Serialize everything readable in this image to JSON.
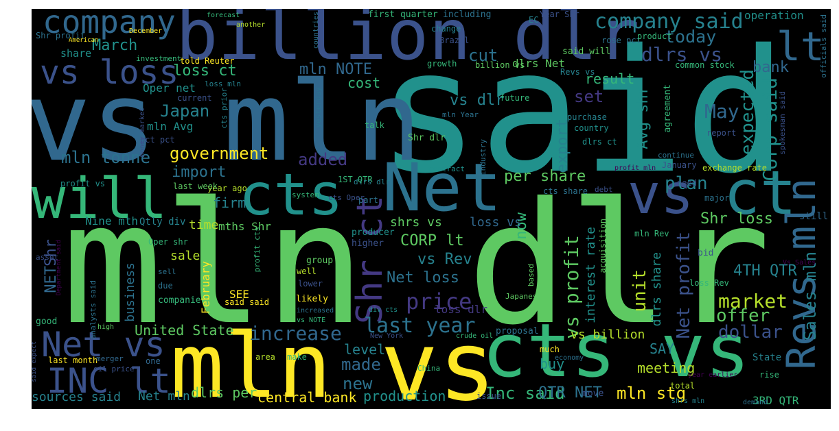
{
  "words": [
    {
      "text": "mln dlr",
      "color": "#5ec962"
    },
    {
      "text": "said",
      "color": "#21918c"
    },
    {
      "text": "vs mln",
      "color": "#31688e"
    },
    {
      "text": "billion dlr",
      "color": "#3b528b"
    },
    {
      "text": "mln",
      "color": "#fde725"
    },
    {
      "text": "cts vs",
      "color": "#35b779"
    },
    {
      "text": "vs",
      "color": "#fde725"
    },
    {
      "text": "Net",
      "color": "#2c728e"
    },
    {
      "text": "cts",
      "color": "#21918c"
    },
    {
      "text": "will",
      "color": "#35b779"
    },
    {
      "text": "vs",
      "color": "#3b528b"
    },
    {
      "text": "ct",
      "color": "#26828e"
    },
    {
      "text": "company",
      "color": "#31688e"
    },
    {
      "text": "lt",
      "color": "#31688e"
    },
    {
      "text": "Revs mln",
      "color": "#31688e"
    },
    {
      "text": "Shr ct",
      "color": "#443983"
    },
    {
      "text": "Net vs",
      "color": "#3b528b"
    },
    {
      "text": "INC lt",
      "color": "#3b528b"
    },
    {
      "text": "vs loss",
      "color": "#3b528b"
    },
    {
      "text": "company said",
      "color": "#26828e"
    },
    {
      "text": "last year",
      "color": "#2c728e"
    },
    {
      "text": "Corp said",
      "color": "#21918c"
    },
    {
      "text": "market",
      "color": "#b5de2b"
    },
    {
      "text": "price",
      "color": "#443983"
    },
    {
      "text": "increase",
      "color": "#31688e"
    },
    {
      "text": "dlrs vs",
      "color": "#3b528b"
    },
    {
      "text": "today",
      "color": "#2c728e"
    },
    {
      "text": "May",
      "color": "#31688e"
    },
    {
      "text": "vs profit",
      "color": "#5ec962"
    },
    {
      "text": "Net profit",
      "color": "#3b528b"
    },
    {
      "text": "Sales mln",
      "color": "#26828e"
    },
    {
      "text": "mln stg",
      "color": "#fde725"
    },
    {
      "text": "Inc said",
      "color": "#35b779"
    },
    {
      "text": "made",
      "color": "#31688e"
    },
    {
      "text": "new",
      "color": "#2c728e"
    },
    {
      "text": "government",
      "color": "#fde725"
    },
    {
      "text": "added",
      "color": "#443983"
    },
    {
      "text": "mln tonne",
      "color": "#2c728e"
    },
    {
      "text": "Japan",
      "color": "#26828e"
    },
    {
      "text": "loss ct",
      "color": "#35b779"
    },
    {
      "text": "mln NOTE",
      "color": "#31688e"
    },
    {
      "text": "March",
      "color": "#21918c"
    },
    {
      "text": "per share",
      "color": "#5ec962"
    },
    {
      "text": "plan",
      "color": "#26828e"
    },
    {
      "text": "CORP lt",
      "color": "#5ec962"
    },
    {
      "text": "vs Rev",
      "color": "#26828e"
    },
    {
      "text": "Net loss",
      "color": "#2c728e"
    },
    {
      "text": "offer",
      "color": "#5ec962"
    },
    {
      "text": "dollar",
      "color": "#3b528b"
    },
    {
      "text": "4TH QTR",
      "color": "#26828e"
    },
    {
      "text": "Shr loss",
      "color": "#5ec962"
    },
    {
      "text": "expected",
      "color": "#21918c"
    },
    {
      "text": "bank",
      "color": "#31688e"
    },
    {
      "text": "export",
      "color": "#26828e"
    },
    {
      "text": "set",
      "color": "#443983"
    },
    {
      "text": "vs dlr",
      "color": "#26828e"
    },
    {
      "text": "cut",
      "color": "#2c728e"
    },
    {
      "text": "cost",
      "color": "#35b779"
    },
    {
      "text": "result",
      "color": "#35b779"
    },
    {
      "text": "Avg shr",
      "color": "#21918c"
    },
    {
      "text": "unit",
      "color": "#b5de2b"
    },
    {
      "text": "dlrs share",
      "color": "#21918c"
    },
    {
      "text": "interest rate",
      "color": "#21918c"
    },
    {
      "text": "now",
      "color": "#35b779"
    },
    {
      "text": "import",
      "color": "#2c728e"
    },
    {
      "text": "firm",
      "color": "#26828e"
    },
    {
      "text": "central bank",
      "color": "#fde725"
    },
    {
      "text": "production",
      "color": "#21918c"
    },
    {
      "text": "dlrs per",
      "color": "#5ec962"
    },
    {
      "text": "Net mln",
      "color": "#26828e"
    },
    {
      "text": "sources said",
      "color": "#26828e"
    },
    {
      "text": "United State",
      "color": "#5ec962"
    },
    {
      "text": "QTR NET",
      "color": "#2c728e"
    },
    {
      "text": "3RD QTR",
      "color": "#35b779"
    },
    {
      "text": "meeting",
      "color": "#b5de2b"
    },
    {
      "text": "SAY",
      "color": "#26828e"
    },
    {
      "text": "level",
      "color": "#26828e"
    },
    {
      "text": "buy",
      "color": "#21918c"
    },
    {
      "text": "vs billion",
      "color": "#b5de2b"
    },
    {
      "text": "loss dlr",
      "color": "#443983"
    },
    {
      "text": "shrs vs",
      "color": "#5ec962"
    },
    {
      "text": "loss vs",
      "color": "#31688e"
    },
    {
      "text": "Shr",
      "color": "#3b528b"
    },
    {
      "text": "NET",
      "color": "#31688e"
    },
    {
      "text": "sale",
      "color": "#b5de2b"
    },
    {
      "text": "business",
      "color": "#2c728e"
    },
    {
      "text": "February",
      "color": "#fde725"
    },
    {
      "text": "SEE",
      "color": "#fde725"
    },
    {
      "text": "Nine mth",
      "color": "#21918c"
    },
    {
      "text": "Qtly div",
      "color": "#26828e"
    },
    {
      "text": "time",
      "color": "#b5de2b"
    },
    {
      "text": "mths Shr",
      "color": "#5ec962"
    },
    {
      "text": "mln Avg",
      "color": "#21918c"
    },
    {
      "text": "Oper net",
      "color": "#21918c"
    },
    {
      "text": "share",
      "color": "#21918c"
    },
    {
      "text": "operation",
      "color": "#21918c"
    },
    {
      "text": "first quarter",
      "color": "#35b779"
    },
    {
      "text": "including",
      "color": "#2c728e"
    },
    {
      "text": "Shr profit",
      "color": "#2c728e"
    },
    {
      "text": "told Reuter",
      "color": "#fde725"
    },
    {
      "text": "investment",
      "color": "#35b779"
    },
    {
      "text": "rose pct",
      "color": "#2c728e"
    },
    {
      "text": "said will",
      "color": "#5ec962"
    },
    {
      "text": "product",
      "color": "#35b779"
    },
    {
      "text": "Revs vs",
      "color": "#26828e"
    },
    {
      "text": "common stock",
      "color": "#35b779"
    },
    {
      "text": "Year Shr",
      "color": "#3b528b"
    },
    {
      "text": "EC",
      "color": "#26828e"
    },
    {
      "text": "change",
      "color": "#26828e"
    },
    {
      "text": "Brazil",
      "color": "#3b528b"
    },
    {
      "text": "growth",
      "color": "#35b779"
    },
    {
      "text": "billion vs",
      "color": "#5ec962"
    },
    {
      "text": "dlrs Net",
      "color": "#5ec962"
    },
    {
      "text": "agreement",
      "color": "#35b779"
    },
    {
      "text": "purchase",
      "color": "#26828e"
    },
    {
      "text": "country",
      "color": "#21918c"
    },
    {
      "text": "future",
      "color": "#35b779"
    },
    {
      "text": "dlrs ct",
      "color": "#21918c"
    },
    {
      "text": "report",
      "color": "#3b528b"
    },
    {
      "text": "spokesman said",
      "color": "#3b528b"
    },
    {
      "text": "officials said",
      "color": "#2c728e"
    },
    {
      "text": "continue",
      "color": "#2c728e"
    },
    {
      "text": "January",
      "color": "#3b528b"
    },
    {
      "text": "exchange rate",
      "color": "#b5de2b"
    },
    {
      "text": "need",
      "color": "#3b528b"
    },
    {
      "text": "major",
      "color": "#2c728e"
    },
    {
      "text": "still",
      "color": "#31688e"
    },
    {
      "text": "mln Rev",
      "color": "#35b779"
    },
    {
      "text": "bid",
      "color": "#3b528b"
    },
    {
      "text": "loss Rev",
      "color": "#35b779"
    },
    {
      "text": "State",
      "color": "#26828e"
    },
    {
      "text": "rise",
      "color": "#35b779"
    },
    {
      "text": "total",
      "color": "#b5de2b"
    },
    {
      "text": "proposal",
      "color": "#2c728e"
    },
    {
      "text": "acquisition",
      "color": "#5ec962"
    },
    {
      "text": "based",
      "color": "#5ec962"
    },
    {
      "text": "Japanese",
      "color": "#5ec962"
    },
    {
      "text": "cts share",
      "color": "#2c728e"
    },
    {
      "text": "debt",
      "color": "#3b528b"
    },
    {
      "text": "profit mln",
      "color": "#440154"
    },
    {
      "text": "Vs Sales",
      "color": "#440154"
    },
    {
      "text": "forecast",
      "color": "#35b779"
    },
    {
      "text": "December",
      "color": "#fde725"
    },
    {
      "text": "American",
      "color": "#fde725"
    },
    {
      "text": "another",
      "color": "#b5de2b"
    },
    {
      "text": "countries",
      "color": "#2c728e"
    },
    {
      "text": "current",
      "color": "#3b528b"
    },
    {
      "text": "loss mln",
      "color": "#26828e"
    },
    {
      "text": "cts prior",
      "color": "#26828e"
    },
    {
      "text": "yesterday",
      "color": "#2c728e"
    },
    {
      "text": "mln Year",
      "color": "#2c728e"
    },
    {
      "text": "talk",
      "color": "#35b779"
    },
    {
      "text": "Shr dlr",
      "color": "#5ec962"
    },
    {
      "text": "industry",
      "color": "#2c728e"
    },
    {
      "text": "money market",
      "color": "#3b528b"
    },
    {
      "text": "pct pct",
      "color": "#3b528b"
    },
    {
      "text": "year ago",
      "color": "#b5de2b"
    },
    {
      "text": "1ST QTR",
      "color": "#35b779"
    },
    {
      "text": "contract",
      "color": "#21918c"
    },
    {
      "text": "cts Oper",
      "color": "#3b528b"
    },
    {
      "text": "dlrs dlr",
      "color": "#26828e"
    },
    {
      "text": "profit vs",
      "color": "#21918c"
    },
    {
      "text": "last week",
      "color": "#5ec962"
    },
    {
      "text": "part",
      "color": "#2c728e"
    },
    {
      "text": "system",
      "color": "#35b779"
    },
    {
      "text": "producer",
      "color": "#21918c"
    },
    {
      "text": "higher",
      "color": "#3b528b"
    },
    {
      "text": "profit cts",
      "color": "#35b779"
    },
    {
      "text": "group",
      "color": "#5ec962"
    },
    {
      "text": "well",
      "color": "#b5de2b"
    },
    {
      "text": "lower",
      "color": "#3b528b"
    },
    {
      "text": "likely",
      "color": "#fde725"
    },
    {
      "text": "said said",
      "color": "#fde725"
    },
    {
      "text": "div cts",
      "color": "#21918c"
    },
    {
      "text": "Oper shr",
      "color": "#35b779"
    },
    {
      "text": "asset",
      "color": "#3b528b"
    },
    {
      "text": "Department said",
      "color": "#440154"
    },
    {
      "text": "sell",
      "color": "#2c728e"
    },
    {
      "text": "due",
      "color": "#2c728e"
    },
    {
      "text": "companie",
      "color": "#35b779"
    },
    {
      "text": "increased",
      "color": "#2c728e"
    },
    {
      "text": "vs NOTE",
      "color": "#35b779"
    },
    {
      "text": "analysts said",
      "color": "#2c728e"
    },
    {
      "text": "good",
      "color": "#35b779"
    },
    {
      "text": "high",
      "color": "#5ec962"
    },
    {
      "text": "said expect",
      "color": "#3b528b"
    },
    {
      "text": "last month",
      "color": "#fde725"
    },
    {
      "text": "merger",
      "color": "#31688e"
    },
    {
      "text": "oil price",
      "color": "#3b528b"
    },
    {
      "text": "one",
      "color": "#31688e"
    },
    {
      "text": "area",
      "color": "#b5de2b"
    },
    {
      "text": "make",
      "color": "#35b779"
    },
    {
      "text": "New York",
      "color": "#3b528b"
    },
    {
      "text": "China",
      "color": "#35b779"
    },
    {
      "text": "crude oil",
      "color": "#35b779"
    },
    {
      "text": "much",
      "color": "#fde725"
    },
    {
      "text": "economy",
      "color": "#2c728e"
    },
    {
      "text": "year earlier",
      "color": "#440154"
    },
    {
      "text": "move",
      "color": "#3b528b"
    },
    {
      "text": "issue",
      "color": "#3b528b"
    },
    {
      "text": "shrs mln",
      "color": "#26828e"
    },
    {
      "text": "demand",
      "color": "#2c728e"
    }
  ]
}
